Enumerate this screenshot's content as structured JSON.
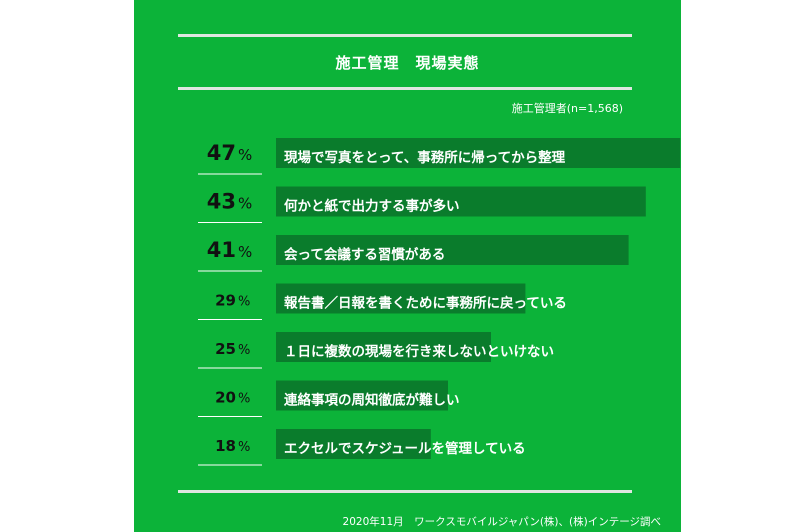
{
  "header": {
    "title": "施工管理　現場実態",
    "note": "施工管理者(n=1,568)"
  },
  "footer": {
    "source": "2020年11月　ワークスモバイルジャパン(株)、(株)インテージ調べ"
  },
  "colors": {
    "background": "#0cb339",
    "bar": "#0a7c2c",
    "rule": "#dfe6e1"
  },
  "chart_data": {
    "type": "bar",
    "orientation": "horizontal",
    "unit": "%",
    "categories": [
      "現場で写真をとって、事務所に帰ってから整理",
      "何かと紙で出力する事が多い",
      "会って会議する習慣がある",
      "報告書／日報を書くために事務所に戻っている",
      "１日に複数の現場を行き来しないといけない",
      "連絡事項の周知徹底が難しい",
      "エクセルでスケジュールを管理している"
    ],
    "values": [
      47,
      43,
      41,
      29,
      25,
      20,
      18
    ],
    "xlim": [
      0,
      100
    ],
    "grid": false,
    "legend": false
  }
}
